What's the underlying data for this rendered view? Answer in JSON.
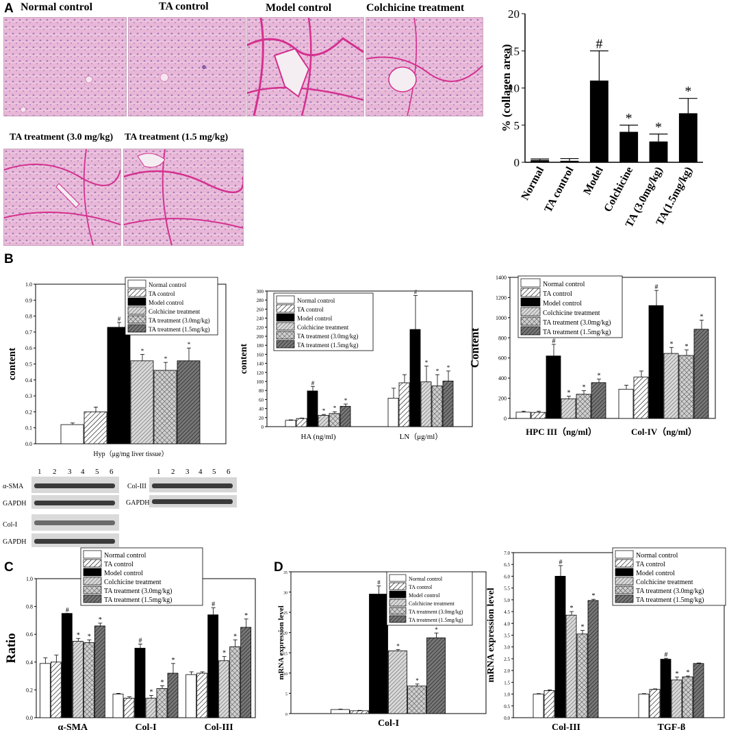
{
  "panels": {
    "A": "A",
    "B": "B",
    "C": "C",
    "D": "D"
  },
  "micrographs": [
    {
      "title": "Normal control"
    },
    {
      "title": "TA control"
    },
    {
      "title": "Model control"
    },
    {
      "title": "Colchicine treatment"
    },
    {
      "title": "TA treatment (3.0 mg/kg)"
    },
    {
      "title": "TA treatment (1.5 mg/kg)"
    }
  ],
  "blots": {
    "lanes": [
      "1",
      "2",
      "3",
      "4",
      "5",
      "6"
    ],
    "left_labels": [
      "α-SMA",
      "GAPDH",
      "Col-I",
      "GAPDH"
    ],
    "right_labels": [
      "Col-III",
      "GAPDH"
    ]
  },
  "colors": {
    "black": "#000000",
    "white": "#ffffff",
    "gray_light": "#bdbdbd",
    "gray_mid": "#8a8a8a",
    "gray_dark": "#555555",
    "tissue_pink": "#e7b3d5",
    "collagen": "#d4308f"
  },
  "chart_data": [
    {
      "id": "A-collagen",
      "type": "bar",
      "ylabel": "% (collagen area)",
      "ylim": [
        0,
        20
      ],
      "yticks": [
        "0",
        "5",
        "10",
        "15",
        "20"
      ],
      "categories": [
        "Normal",
        "TA control",
        "Model",
        "Colchicine",
        "TA (3.0mg/kg)",
        "TA(1.5mg/kg)"
      ],
      "values": [
        0.3,
        0.2,
        11.0,
        4.1,
        2.8,
        6.6
      ],
      "errors": [
        0.15,
        0.3,
        4.0,
        0.9,
        1.0,
        2.0
      ],
      "marks": [
        "",
        "",
        "#",
        "*",
        "*",
        "*"
      ]
    },
    {
      "id": "B-hyp",
      "type": "bar",
      "ylabel": "content",
      "xlabel": "Hyp（μg/mg liver tissue）",
      "ylim": [
        0,
        1.0
      ],
      "yticks": [
        "0.0",
        "0.1",
        "0.2",
        "0.3",
        "0.4",
        "0.5",
        "0.6",
        "0.7",
        "0.8",
        "0.9",
        "1.0"
      ],
      "legend": [
        "Normal control",
        "TA control",
        "Model control",
        "Colchicine treatment",
        "TA treatment (3.0mg/kg)",
        "TA treatment (1.5mg/kg)"
      ],
      "groups": [
        {
          "label": "Hyp（μg/mg liver tissue）",
          "values": [
            0.12,
            0.2,
            0.73,
            0.52,
            0.46,
            0.52
          ],
          "errors": [
            0.01,
            0.03,
            0.03,
            0.04,
            0.05,
            0.08
          ],
          "marks": [
            "",
            "",
            "#",
            "*",
            "*",
            "*"
          ]
        }
      ]
    },
    {
      "id": "B-ha-ln",
      "type": "bar",
      "ylabel": "content",
      "ylim": [
        0,
        300
      ],
      "yticks": [
        "0",
        "20",
        "40",
        "60",
        "80",
        "100",
        "120",
        "140",
        "160",
        "180",
        "200",
        "220",
        "240",
        "260",
        "280",
        "300"
      ],
      "legend": [
        "Normal control",
        "TA control",
        "Model control",
        "Colchicine treatment",
        "TA treatment (3.0mg/kg)",
        "TA treatment (1.5mg/kg)"
      ],
      "groups": [
        {
          "label": "HA (ng/ml)",
          "values": [
            14,
            18,
            79,
            25,
            29,
            45
          ],
          "errors": [
            1,
            1,
            10,
            2,
            4,
            5
          ],
          "marks": [
            "",
            "",
            "#",
            "*",
            "*",
            "*"
          ]
        },
        {
          "label": "LN（μg/ml）",
          "values": [
            63,
            97,
            215,
            99,
            90,
            101
          ],
          "errors": [
            22,
            18,
            75,
            35,
            25,
            22
          ],
          "marks": [
            "",
            "",
            "#",
            "*",
            "*",
            "*"
          ]
        }
      ]
    },
    {
      "id": "B-hpc-col4",
      "type": "bar",
      "ylabel": "Content",
      "ylim": [
        0,
        1400
      ],
      "yticks": [
        "0",
        "200",
        "400",
        "600",
        "800",
        "1000",
        "1200",
        "1400"
      ],
      "legend": [
        "Normal control",
        "TA control",
        "Model control",
        "Colchicine treatment",
        "TA treatment (3.0mg/kg)",
        "TA treatment (1.5mg/kg)"
      ],
      "groups": [
        {
          "label": "HPC III（ng/ml）",
          "values": [
            62,
            60,
            620,
            195,
            240,
            355
          ],
          "errors": [
            10,
            12,
            115,
            25,
            35,
            35
          ],
          "marks": [
            "",
            "",
            "#",
            "*",
            "*",
            "*"
          ]
        },
        {
          "label": "Col-IV（ng/ml）",
          "values": [
            290,
            410,
            1120,
            645,
            625,
            885
          ],
          "errors": [
            40,
            60,
            150,
            60,
            55,
            90
          ],
          "marks": [
            "",
            "",
            "#",
            "*",
            "*",
            "*"
          ]
        }
      ]
    },
    {
      "id": "C-ratio",
      "type": "bar",
      "ylabel": "Ratio",
      "ylim": [
        0,
        1.0
      ],
      "yticks": [
        "0.0",
        "0.2",
        "0.4",
        "0.6",
        "0.8",
        "1.0"
      ],
      "legend": [
        "Normal control",
        "TA control",
        "Model control",
        "Colchicine treatment",
        "TA treatment (3.0mg/kg)",
        "TA treatment (1.5mg/kg)"
      ],
      "groups": [
        {
          "label": "α-SMA",
          "values": [
            0.39,
            0.4,
            0.75,
            0.55,
            0.54,
            0.66
          ],
          "errors": [
            0.04,
            0.05,
            0.0,
            0.02,
            0.02,
            0.02
          ],
          "marks": [
            "",
            "",
            "#",
            "*",
            "*",
            "*"
          ]
        },
        {
          "label": "Col-I",
          "values": [
            0.17,
            0.14,
            0.5,
            0.14,
            0.21,
            0.32
          ],
          "errors": [
            0.005,
            0.01,
            0.03,
            0.02,
            0.02,
            0.07
          ],
          "marks": [
            "",
            "",
            "#",
            "*",
            "*",
            "*"
          ]
        },
        {
          "label": "Col-III",
          "values": [
            0.31,
            0.32,
            0.74,
            0.41,
            0.51,
            0.65
          ],
          "errors": [
            0.02,
            0.01,
            0.05,
            0.03,
            0.05,
            0.06
          ],
          "marks": [
            "",
            "",
            "#",
            "*",
            "*",
            "*"
          ]
        }
      ]
    },
    {
      "id": "D-col1",
      "type": "bar",
      "ylabel": "mRNA expression level",
      "ylim": [
        0,
        35
      ],
      "yticks": [
        "0",
        "5",
        "10",
        "15",
        "20",
        "25",
        "30",
        "35"
      ],
      "legend": [
        "Normal control",
        "TA control",
        "Model control",
        "Colchicine treatment",
        "TA treatment (3.0mg/kg)",
        "TA treatment (1.5mg/kg)"
      ],
      "groups": [
        {
          "label": "Col-I",
          "values": [
            1.0,
            0.7,
            29.5,
            15.5,
            6.8,
            18.7
          ],
          "errors": [
            0.1,
            0.1,
            2.0,
            0.3,
            0.5,
            1.2
          ],
          "marks": [
            "",
            "",
            "#",
            "*",
            "*",
            "*"
          ]
        }
      ]
    },
    {
      "id": "D-col3-tgf",
      "type": "bar",
      "ylabel": "mRNA expression level",
      "ylim": [
        0,
        7.0
      ],
      "yticks": [
        "0.0",
        "0.5",
        "1.0",
        "1.5",
        "2.0",
        "2.5",
        "3.0",
        "3.5",
        "4.0",
        "4.5",
        "5.0",
        "5.5",
        "6.0",
        "6.5",
        "7.0"
      ],
      "legend": [
        "Normal control",
        "TA control",
        "Model control",
        "Colchicine treatment",
        "TA treatment (3.0mg/kg)",
        "TA treatment (1.5mg/kg)"
      ],
      "groups": [
        {
          "label": "Col-III",
          "values": [
            1.0,
            1.15,
            6.0,
            4.35,
            3.55,
            4.97
          ],
          "errors": [
            0.02,
            0.03,
            0.45,
            0.15,
            0.15,
            0.05
          ],
          "marks": [
            "",
            "",
            "#",
            "*",
            "*",
            "*"
          ]
        },
        {
          "label": "TGF-β",
          "values": [
            1.0,
            1.2,
            2.48,
            1.6,
            1.73,
            2.3
          ],
          "errors": [
            0.02,
            0.02,
            0.04,
            0.12,
            0.04,
            0.02
          ],
          "marks": [
            "",
            "",
            "#",
            "*",
            "*",
            ""
          ]
        }
      ]
    }
  ]
}
